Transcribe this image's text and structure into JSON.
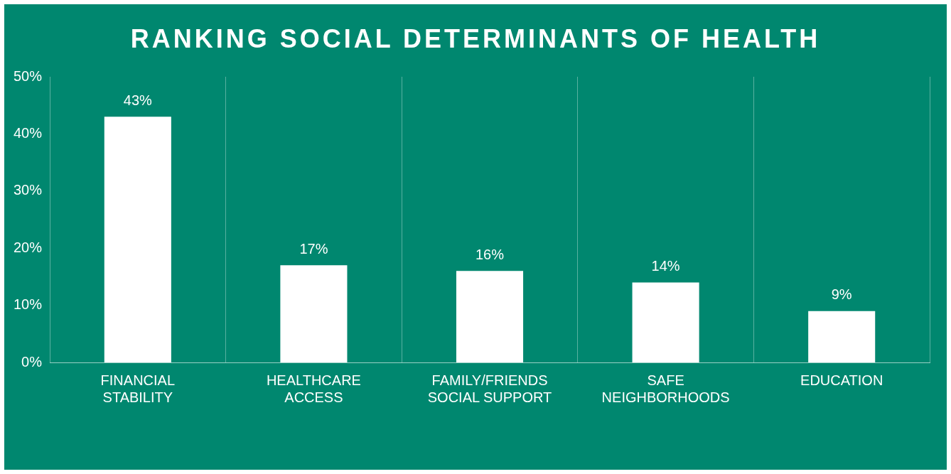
{
  "chart_data": {
    "type": "bar",
    "title": "RANKING SOCIAL DETERMINANTS OF HEALTH",
    "categories": [
      "FINANCIAL STABILITY",
      "HEALTHCARE ACCESS",
      "FAMILY/FRIENDS SOCIAL SUPPORT",
      "SAFE NEIGHBORHOODS",
      "EDUCATION"
    ],
    "values": [
      43,
      17,
      16,
      14,
      9
    ],
    "value_labels": [
      "43%",
      "17%",
      "16%",
      "14%",
      "9%"
    ],
    "color": "#ffffff",
    "ylim": [
      0,
      50
    ],
    "yticks": [
      {
        "value": 0,
        "label": "0%"
      },
      {
        "value": 10,
        "label": "10%"
      },
      {
        "value": 20,
        "label": "20%"
      },
      {
        "value": 30,
        "label": "30%"
      },
      {
        "value": 40,
        "label": "40%"
      },
      {
        "value": 50,
        "label": "50%"
      }
    ],
    "grid": "x",
    "legend": false
  }
}
